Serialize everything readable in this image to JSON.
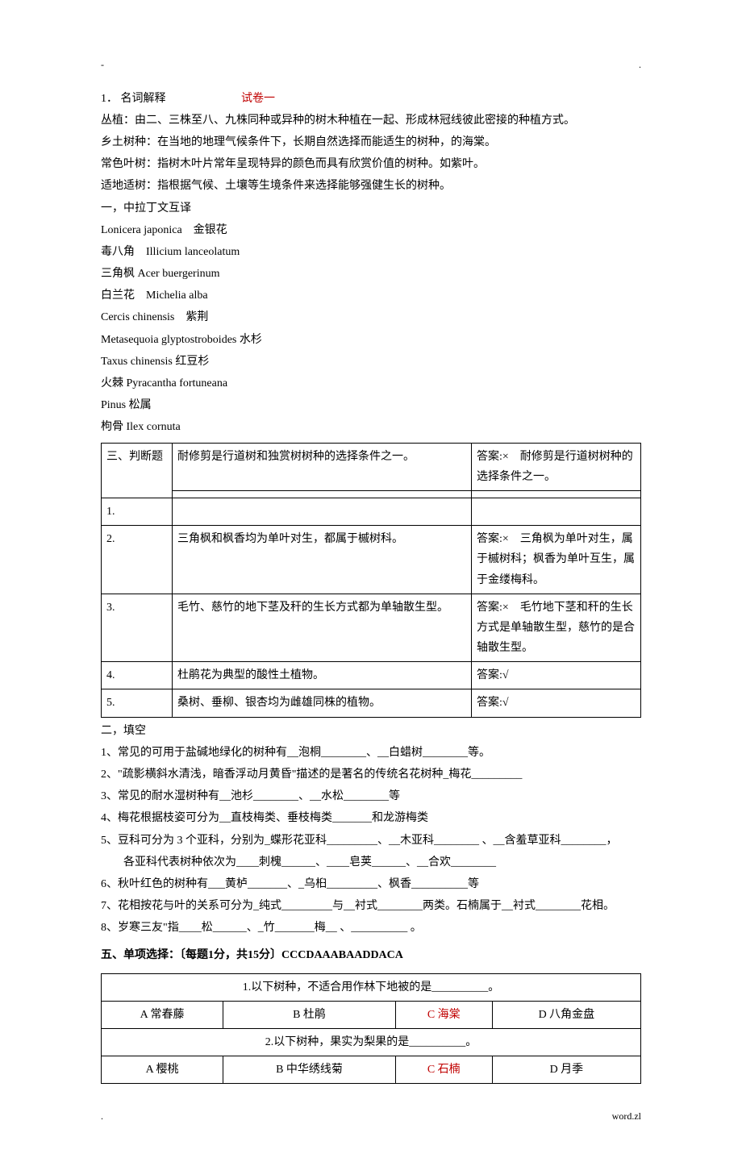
{
  "header": {
    "left": "-",
    "right": "."
  },
  "section1": {
    "num": "1．",
    "title": "名词解释",
    "tagline": "试卷一",
    "definitions": [
      "丛植：由二、三株至八、九株同种或异种的树木种植在一起、形成林冠线彼此密接的种植方式。",
      "乡土树种：在当地的地理气候条件下，长期自然选择而能适生的树种，的海棠。",
      "常色叶树：指树木叶片常年呈现特异的颜色而具有欣赏价值的树种。如紫叶。",
      "适地适树：指根据气候、土壤等生境条件来选择能够强健生长的树种。"
    ]
  },
  "latin": {
    "heading": "一，中拉丁文互译",
    "items": [
      "Lonicera japonica　金银花",
      "毒八角　Illicium lanceolatum",
      "三角枫 Acer buergerinum",
      "白兰花　Michelia alba",
      "Cercis chinensis　紫荆",
      "Metasequoia glyptostroboides 水杉",
      "Taxus chinensis 红豆杉",
      "火棘 Pyracantha fortuneana",
      "Pinus 松属",
      "枸骨 Ilex cornuta"
    ]
  },
  "judge": {
    "heading": "三、判断题",
    "rows": [
      {
        "n": "1.",
        "q": "耐修剪是行道树和独赏树树种的选择条件之一。",
        "a": "答案:×　耐修剪是行道树树种的选择条件之一。"
      },
      {
        "n": "2.",
        "q": "三角枫和枫香均为单叶对生，都属于槭树科。",
        "a": "答案:×　三角枫为单叶对生，属于槭树科；枫香为单叶互生，属于金缕梅科。"
      },
      {
        "n": "3.",
        "q": "毛竹、慈竹的地下茎及秆的生长方式都为单轴散生型。",
        "a": "答案:×　毛竹地下茎和秆的生长方式是单轴散生型，慈竹的是合轴散生型。"
      },
      {
        "n": "4.",
        "q": "杜鹃花为典型的酸性土植物。",
        "a": "答案:√"
      },
      {
        "n": "5.",
        "q": "桑树、垂柳、银杏均为雌雄同株的植物。",
        "a": "答案:√"
      }
    ]
  },
  "fill": {
    "heading": "二，填空",
    "items": [
      {
        "t": "1、常见的可用于盐碱地绿化的树种有__泡桐________、__白蜡树________等。"
      },
      {
        "t": "2、\"疏影横斜水清浅，暗香浮动月黄昏\"描述的是著名的传统名花树种_梅花_________"
      },
      {
        "t": "3、常见的耐水湿树种有__池杉________、__水松________等"
      },
      {
        "t": "4、梅花根据枝姿可分为__直枝梅类、垂枝梅类_______和龙游梅类"
      },
      {
        "t": "5、豆科可分为 3 个亚科，分别为_蝶形花亚科_________、__木亚科________ 、__含羞草亚科________，"
      },
      {
        "t_sub": "各亚科代表树种依次为____刺槐______、____皂荚______、__合欢________"
      },
      {
        "t": "6、秋叶红色的树种有___黄栌_______、_乌桕_________、枫香__________等"
      },
      {
        "t": "7、花相按花与叶的关系可分为_纯式_________与__衬式________两类。石楠属于__衬式________花相。"
      },
      {
        "t": "8、岁寒三友\"指____松______、_竹_______梅__ 、__________ 。"
      }
    ]
  },
  "mc": {
    "heading": "五、单项选择：〔每题1分，共15分〕CCCDAAABAADDACA",
    "q1": {
      "stem": "1.以下树种，不适合用作林下地被的是__________。",
      "a": "A  常春藤",
      "b": "B  杜鹃",
      "c": "C  海棠",
      "d": "D  八角金盘"
    },
    "q2": {
      "stem": "2.以下树种，果实为梨果的是__________。",
      "a": "A  樱桃",
      "b": "B  中华绣线菊",
      "c": "C  石楠",
      "d": "D  月季"
    }
  },
  "footer": {
    "left": ".",
    "right": "word.zl"
  }
}
